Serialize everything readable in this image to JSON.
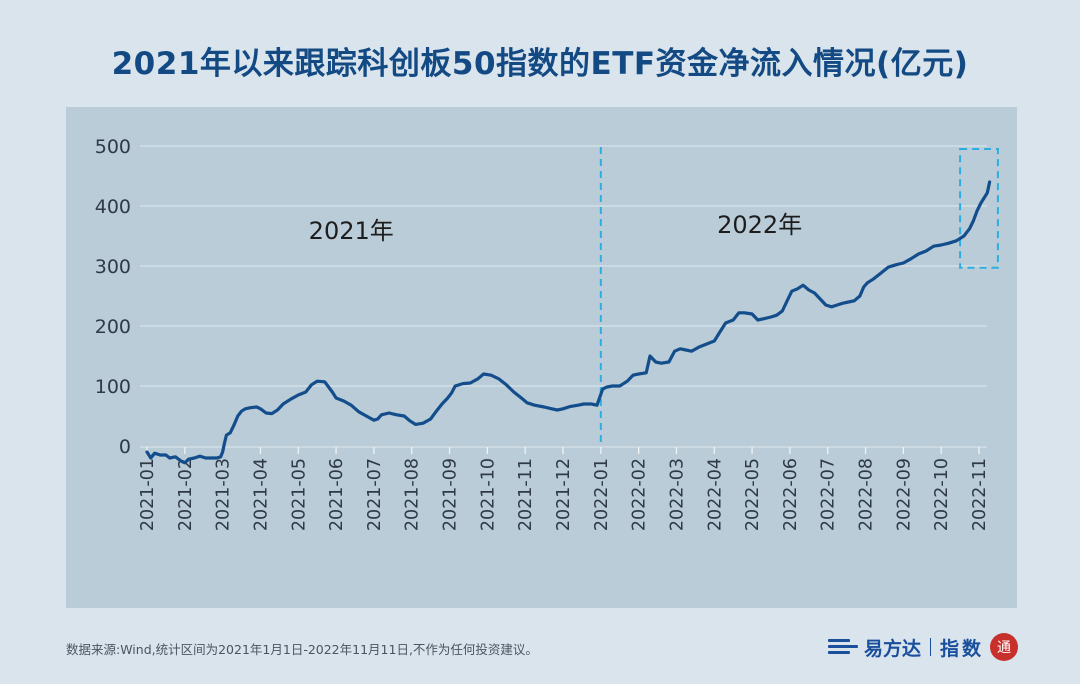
{
  "header": {
    "title": "2021年以来跟踪科创板50指数的ETF资金净流入情况(亿元)"
  },
  "footer": {
    "note": "数据来源:Wind,统计区间为2021年1月1日-2022年11月11日,不作为任何投资建议。",
    "brand_name": "易方达",
    "brand_sub": "指数",
    "seal_char": "通"
  },
  "colors": {
    "line": "#134d8c",
    "dashed": "#2eaee0",
    "panel": "#b9ccd8",
    "grid": "#dfe8ee",
    "title": "#134a84"
  },
  "chart_data": {
    "type": "line",
    "title": "2021年以来跟踪科创板50指数的ETF资金净流入情况(亿元)",
    "xlabel": "",
    "ylabel": "",
    "ylim": [
      -20,
      500
    ],
    "yticks": [
      0,
      100,
      200,
      300,
      400,
      500
    ],
    "grid": true,
    "legend": "none",
    "categories": [
      "2021-01",
      "2021-02",
      "2021-03",
      "2021-04",
      "2021-05",
      "2021-06",
      "2021-07",
      "2021-08",
      "2021-09",
      "2021-10",
      "2021-11",
      "2021-12",
      "2022-01",
      "2022-02",
      "2022-03",
      "2022-04",
      "2022-05",
      "2022-06",
      "2022-07",
      "2022-08",
      "2022-09",
      "2022-10",
      "2022-11"
    ],
    "annotations": [
      {
        "text": "2021年",
        "x": 5.4,
        "y": 345
      },
      {
        "text": "2022年",
        "x": 16.2,
        "y": 355
      }
    ],
    "divider_x": 12,
    "highlight_box": {
      "x": [
        21.5,
        22.5
      ],
      "y": [
        297,
        495
      ]
    },
    "series": [
      {
        "points": [
          [
            0.0,
            -10
          ],
          [
            0.1,
            -20
          ],
          [
            0.2,
            -12
          ],
          [
            0.35,
            -15
          ],
          [
            0.5,
            -15
          ],
          [
            0.6,
            -20
          ],
          [
            0.75,
            -18
          ],
          [
            0.9,
            -25
          ],
          [
            1.0,
            -28
          ],
          [
            1.1,
            -22
          ],
          [
            1.25,
            -20
          ],
          [
            1.4,
            -17
          ],
          [
            1.55,
            -20
          ],
          [
            1.7,
            -20
          ],
          [
            1.85,
            -20
          ],
          [
            1.95,
            -18
          ],
          [
            2.0,
            -10
          ],
          [
            2.05,
            5
          ],
          [
            2.1,
            18
          ],
          [
            2.2,
            22
          ],
          [
            2.3,
            35
          ],
          [
            2.4,
            50
          ],
          [
            2.5,
            58
          ],
          [
            2.6,
            62
          ],
          [
            2.75,
            64
          ],
          [
            2.9,
            65
          ],
          [
            3.0,
            62
          ],
          [
            3.15,
            55
          ],
          [
            3.3,
            54
          ],
          [
            3.45,
            60
          ],
          [
            3.6,
            70
          ],
          [
            3.8,
            78
          ],
          [
            4.0,
            85
          ],
          [
            4.2,
            90
          ],
          [
            4.35,
            102
          ],
          [
            4.5,
            108
          ],
          [
            4.7,
            107
          ],
          [
            4.9,
            90
          ],
          [
            5.0,
            80
          ],
          [
            5.2,
            75
          ],
          [
            5.4,
            68
          ],
          [
            5.6,
            57
          ],
          [
            5.8,
            50
          ],
          [
            6.0,
            43
          ],
          [
            6.1,
            45
          ],
          [
            6.2,
            52
          ],
          [
            6.4,
            55
          ],
          [
            6.6,
            52
          ],
          [
            6.8,
            50
          ],
          [
            6.95,
            42
          ],
          [
            7.1,
            36
          ],
          [
            7.3,
            38
          ],
          [
            7.5,
            45
          ],
          [
            7.65,
            58
          ],
          [
            7.8,
            70
          ],
          [
            7.95,
            80
          ],
          [
            8.05,
            88
          ],
          [
            8.15,
            100
          ],
          [
            8.35,
            104
          ],
          [
            8.55,
            105
          ],
          [
            8.75,
            112
          ],
          [
            8.9,
            120
          ],
          [
            9.1,
            118
          ],
          [
            9.3,
            112
          ],
          [
            9.5,
            102
          ],
          [
            9.7,
            90
          ],
          [
            9.9,
            80
          ],
          [
            10.05,
            72
          ],
          [
            10.25,
            68
          ],
          [
            10.5,
            65
          ],
          [
            10.7,
            62
          ],
          [
            10.85,
            60
          ],
          [
            11.0,
            62
          ],
          [
            11.2,
            66
          ],
          [
            11.4,
            68
          ],
          [
            11.55,
            70
          ],
          [
            11.75,
            70
          ],
          [
            11.9,
            68
          ],
          [
            12.05,
            95
          ],
          [
            12.15,
            98
          ],
          [
            12.3,
            100
          ],
          [
            12.5,
            100
          ],
          [
            12.7,
            108
          ],
          [
            12.85,
            118
          ],
          [
            13.0,
            120
          ],
          [
            13.2,
            122
          ],
          [
            13.3,
            150
          ],
          [
            13.45,
            140
          ],
          [
            13.6,
            138
          ],
          [
            13.8,
            140
          ],
          [
            13.95,
            158
          ],
          [
            14.1,
            162
          ],
          [
            14.25,
            160
          ],
          [
            14.4,
            158
          ],
          [
            14.6,
            165
          ],
          [
            14.8,
            170
          ],
          [
            15.0,
            175
          ],
          [
            15.15,
            190
          ],
          [
            15.3,
            205
          ],
          [
            15.5,
            210
          ],
          [
            15.65,
            222
          ],
          [
            15.8,
            222
          ],
          [
            16.0,
            220
          ],
          [
            16.15,
            210
          ],
          [
            16.3,
            212
          ],
          [
            16.5,
            215
          ],
          [
            16.65,
            218
          ],
          [
            16.8,
            225
          ],
          [
            16.95,
            245
          ],
          [
            17.05,
            258
          ],
          [
            17.2,
            262
          ],
          [
            17.35,
            268
          ],
          [
            17.5,
            260
          ],
          [
            17.65,
            255
          ],
          [
            17.8,
            245
          ],
          [
            17.95,
            235
          ],
          [
            18.1,
            232
          ],
          [
            18.25,
            235
          ],
          [
            18.4,
            238
          ],
          [
            18.55,
            240
          ],
          [
            18.7,
            242
          ],
          [
            18.85,
            250
          ],
          [
            18.95,
            265
          ],
          [
            19.05,
            272
          ],
          [
            19.2,
            278
          ],
          [
            19.4,
            288
          ],
          [
            19.6,
            298
          ],
          [
            19.8,
            302
          ],
          [
            20.0,
            305
          ],
          [
            20.2,
            312
          ],
          [
            20.4,
            320
          ],
          [
            20.6,
            325
          ],
          [
            20.8,
            333
          ],
          [
            21.0,
            335
          ],
          [
            21.2,
            338
          ],
          [
            21.4,
            342
          ],
          [
            21.6,
            350
          ],
          [
            21.75,
            362
          ],
          [
            21.85,
            375
          ],
          [
            21.95,
            392
          ],
          [
            22.05,
            405
          ],
          [
            22.15,
            415
          ],
          [
            22.22,
            422
          ],
          [
            22.28,
            440
          ]
        ]
      }
    ]
  }
}
